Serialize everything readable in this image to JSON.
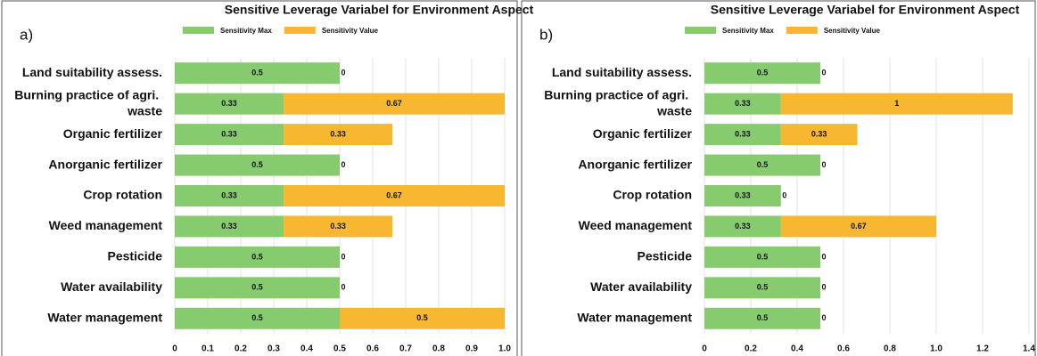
{
  "chart_data": [
    {
      "type": "stacked_barh",
      "panel_label": "a)",
      "title": "Sensitive Leverage Variabel for Environment Aspect",
      "categories": [
        "Land suitability assess.",
        "Burning practice of agri. waste",
        "Organic fertilizer",
        "Anorganic fertilizer",
        "Crop rotation",
        "Weed management",
        "Pesticide",
        "Water availability",
        "Water management"
      ],
      "series": [
        {
          "name": "Sensitivity Max",
          "color": "#86cc6e",
          "values": [
            0.5,
            0.33,
            0.33,
            0.5,
            0.33,
            0.33,
            0.5,
            0.5,
            0.5
          ]
        },
        {
          "name": "Sensitivity Value",
          "color": "#f7b731",
          "values": [
            0,
            0.67,
            0.33,
            0,
            0.67,
            0.33,
            0,
            0,
            0.5
          ]
        }
      ],
      "xlim": [
        0,
        1
      ],
      "xticks": [
        0,
        0.1,
        0.2,
        0.3,
        0.4,
        0.5,
        0.6,
        0.7,
        0.8,
        0.9,
        {
          "value": 1,
          "label": "1.0"
        }
      ],
      "grid": true
    },
    {
      "type": "stacked_barh",
      "panel_label": "b)",
      "title": "Sensitive Leverage Variabel for Environment Aspect",
      "categories": [
        "Land suitability assess.",
        "Burning practice of agri. waste",
        "Organic fertilizer",
        "Anorganic fertilizer",
        "Crop rotation",
        "Weed management",
        "Pesticide",
        "Water availability",
        "Water management"
      ],
      "series": [
        {
          "name": "Sensitivity Max",
          "color": "#86cc6e",
          "values": [
            0.5,
            0.33,
            0.33,
            0.5,
            0.33,
            0.33,
            0.5,
            0.5,
            0.5
          ]
        },
        {
          "name": "Sensitivity Value",
          "color": "#f7b731",
          "values": [
            0,
            1,
            0.33,
            0,
            0,
            0.67,
            0,
            0,
            0
          ]
        }
      ],
      "xlim": [
        0,
        1.4
      ],
      "xticks": [
        0,
        0.2,
        0.4,
        0.6,
        0.8,
        {
          "value": 1,
          "label": "1.0"
        },
        1.2,
        1.4
      ],
      "grid": true
    }
  ]
}
